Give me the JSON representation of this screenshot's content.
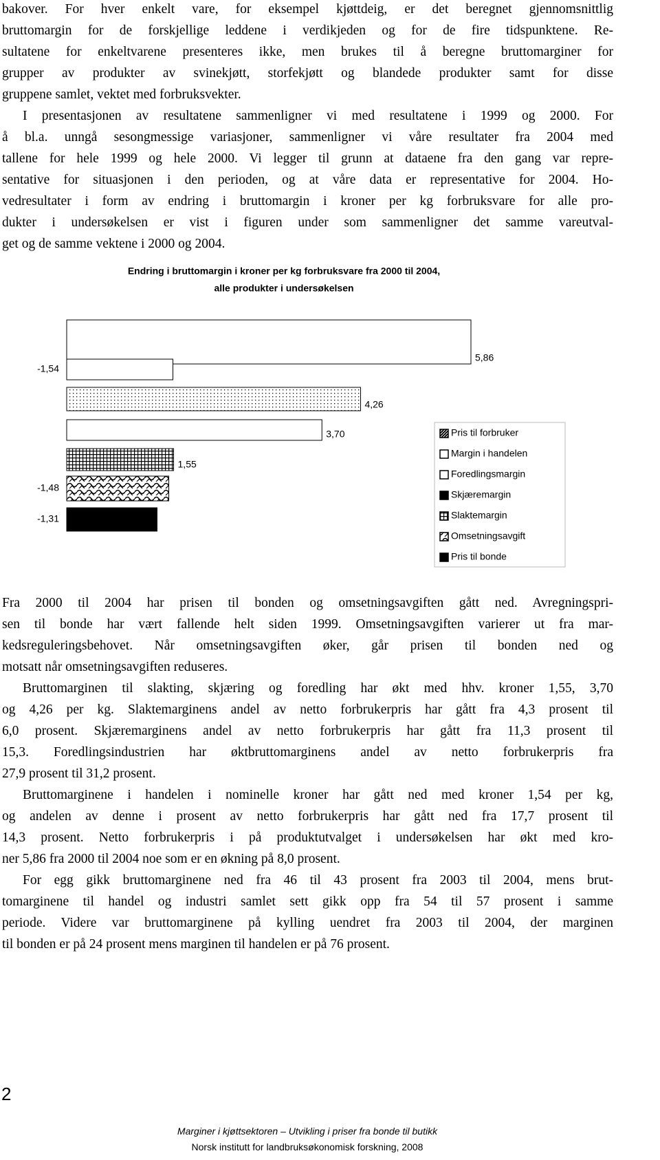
{
  "body_top": {
    "paragraphs": [
      [
        "bakover. For hver enkelt vare, for eksempel kjøttdeig, er det beregnet gjennomsnittlig",
        "bruttomargin for de forskjellige leddene i verdikjeden og for de fire tidspunktene. Re-",
        "sultatene for enkeltvarene presenteres ikke, men brukes til å beregne bruttomarginer for",
        "grupper av produkter av svinekjøtt, storfekjøtt og blandede produkter samt for disse",
        "gruppene samlet, vektet med forbruksvekter."
      ],
      [
        "I presentasjonen av resultatene sammenligner vi med resultatene i 1999 og 2000. For",
        "å bl.a. unngå sesongmessige variasjoner, sammenligner vi våre resultater fra 2004 med",
        "tallene for hele 1999 og hele 2000. Vi legger til grunn at dataene fra den gang var repre-",
        "sentative for situasjonen i den perioden, og at våre data er representative for 2004. Ho-",
        "vedresultater i form av endring i bruttomargin i kroner per kg forbruksvare for alle pro-",
        "dukter i undersøkelsen er vist i figuren under som sammenligner det samme vareutval-",
        "get og de samme vektene i 2000 og 2004."
      ]
    ]
  },
  "chart_data": {
    "type": "bar",
    "title": [
      "Endring i bruttomargin i kroner per kg forbruksvare fra 2000 til 2004,",
      "alle produkter i undersøkelsen"
    ],
    "categories": [
      "Pris til forbruker",
      "Margin i handelen",
      "Foredlingsmargin",
      "Skjæremargin",
      "Slaktemargin",
      "Omsetningsavgift",
      "Pris til bonde"
    ],
    "values": [
      5.86,
      -1.54,
      4.26,
      3.7,
      1.55,
      -1.48,
      -1.31
    ],
    "value_labels": [
      "5,86",
      "-1,54",
      "4,26",
      "3,70",
      "1,55",
      "-1,48",
      "-1,31"
    ],
    "patterns": [
      "white",
      "white",
      "dots",
      "white",
      "grid",
      "wave",
      "black"
    ],
    "legend_patterns": [
      "diag",
      "white",
      "white",
      "black",
      "grid",
      "wave",
      "black"
    ]
  },
  "body_bottom": {
    "paragraphs": [
      [
        "Fra 2000 til 2004 har prisen til bonden og omsetningsavgiften gått ned. Avregningspri-",
        "sen til bonde har vært fallende helt siden 1999. Omsetningsavgiften varierer ut fra mar-",
        "kedsreguleringsbehovet. Når omsetningsavgiften øker, går prisen til bonden ned og",
        "motsatt når omsetningsavgiften reduseres."
      ],
      [
        "Bruttomarginen til slakting, skjæring og foredling har økt med hhv. kroner 1,55, 3,70",
        "og 4,26 per kg. Slaktemarginens andel av netto forbrukerpris har gått fra 4,3 prosent til",
        "6,0 prosent. Skjæremarginens andel av netto forbrukerpris har gått fra 11,3 prosent til",
        "15,3. Foredlingsindustrien har øktbruttomarginens andel av netto forbrukerpris fra",
        "27,9 prosent til 31,2 prosent."
      ],
      [
        "Bruttomarginene i handelen i nominelle kroner har gått ned med kroner 1,54 per kg,",
        "og andelen av denne i prosent av netto forbrukerpris har gått ned fra 17,7 prosent til",
        "14,3 prosent. Netto forbrukerpris i på produktutvalget i undersøkelsen har økt med kro-",
        "ner 5,86 fra 2000 til 2004 noe som er en økning på 8,0 prosent."
      ],
      [
        "For egg gikk bruttomarginene ned fra 46 til 43 prosent fra 2003 til 2004, mens brut-",
        "tomarginene til handel og industri samlet sett gikk opp fra 54 til 57 prosent i samme",
        "periode. Videre var bruttomarginene på kylling uendret fra 2003 til 2004, der marginen",
        "til bonden er på 24 prosent mens marginen til handelen er på 76 prosent."
      ]
    ]
  },
  "footer": {
    "page_number": "2",
    "lines": [
      "Marginer i kjøttsektoren – Utvikling i priser fra bonde til butikk",
      "Norsk institutt for landbruksøkonomisk forskning, 2008"
    ]
  }
}
